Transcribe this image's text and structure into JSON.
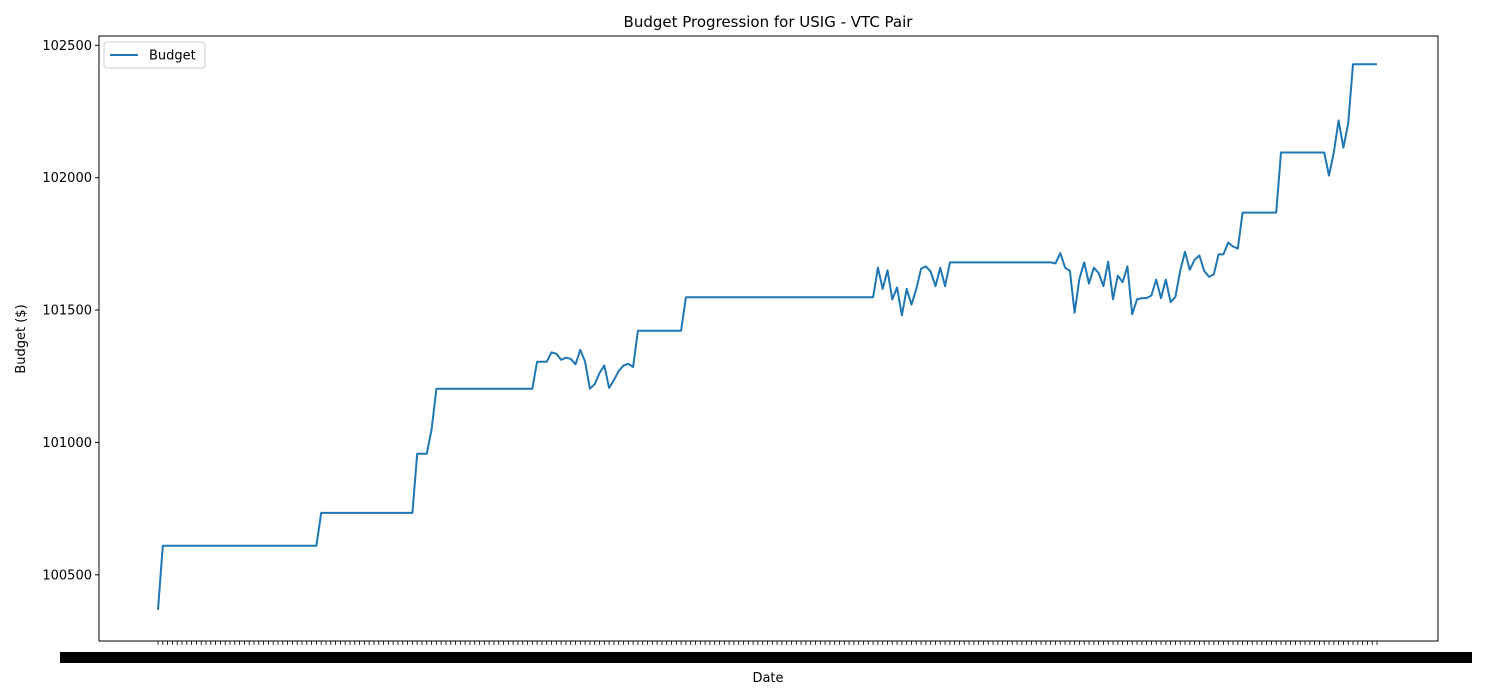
{
  "chart_data": {
    "type": "line",
    "title": "Budget Progression for USIG - VTC Pair",
    "xlabel": "Date",
    "ylabel": "Budget ($)",
    "yticks": [
      100500,
      101000,
      101500,
      102000,
      102500
    ],
    "ylim": [
      100250,
      102535
    ],
    "grid": false,
    "legend_position": "top-left",
    "series": [
      {
        "name": "Budget",
        "color": "#1f77b4",
        "values": [
          100368,
          100610,
          100610,
          100610,
          100610,
          100610,
          100610,
          100610,
          100610,
          100610,
          100610,
          100610,
          100610,
          100610,
          100610,
          100610,
          100610,
          100610,
          100610,
          100610,
          100610,
          100610,
          100610,
          100610,
          100610,
          100610,
          100610,
          100610,
          100610,
          100610,
          100610,
          100610,
          100610,
          100610,
          100734,
          100734,
          100734,
          100734,
          100734,
          100734,
          100734,
          100734,
          100734,
          100734,
          100734,
          100734,
          100734,
          100734,
          100734,
          100734,
          100734,
          100734,
          100734,
          100734,
          100957,
          100957,
          100957,
          101050,
          101203,
          101203,
          101203,
          101203,
          101203,
          101203,
          101203,
          101203,
          101203,
          101203,
          101203,
          101203,
          101203,
          101203,
          101203,
          101203,
          101203,
          101203,
          101203,
          101203,
          101203,
          101305,
          101305,
          101305,
          101340,
          101335,
          101312,
          101320,
          101316,
          101295,
          101350,
          101305,
          101203,
          101220,
          101262,
          101290,
          101206,
          101235,
          101270,
          101290,
          101297,
          101285,
          101422,
          101422,
          101422,
          101422,
          101422,
          101422,
          101422,
          101422,
          101422,
          101422,
          101548,
          101548,
          101548,
          101548,
          101548,
          101548,
          101548,
          101548,
          101548,
          101548,
          101548,
          101548,
          101548,
          101548,
          101548,
          101548,
          101548,
          101548,
          101548,
          101548,
          101548,
          101548,
          101548,
          101548,
          101548,
          101548,
          101548,
          101548,
          101548,
          101548,
          101548,
          101548,
          101548,
          101548,
          101548,
          101548,
          101548,
          101548,
          101548,
          101548,
          101660,
          101580,
          101650,
          101540,
          101585,
          101480,
          101580,
          101520,
          101580,
          101656,
          101665,
          101645,
          101590,
          101660,
          101590,
          101680,
          101680,
          101680,
          101680,
          101680,
          101680,
          101680,
          101680,
          101680,
          101680,
          101680,
          101680,
          101680,
          101680,
          101680,
          101680,
          101680,
          101680,
          101680,
          101680,
          101680,
          101680,
          101676,
          101715,
          101660,
          101648,
          101490,
          101618,
          101680,
          101600,
          101660,
          101640,
          101590,
          101683,
          101540,
          101630,
          101605,
          101665,
          101484,
          101540,
          101545,
          101545,
          101555,
          101615,
          101545,
          101615,
          101530,
          101550,
          101648,
          101720,
          101652,
          101690,
          101706,
          101648,
          101625,
          101635,
          101710,
          101710,
          101755,
          101740,
          101732,
          101868,
          101868,
          101868,
          101868,
          101868,
          101868,
          101868,
          101868,
          102095,
          102095,
          102095,
          102095,
          102095,
          102095,
          102095,
          102095,
          102095,
          102095,
          102008,
          102095,
          102216,
          102113,
          102205,
          102428,
          102428,
          102428,
          102428,
          102428,
          102428
        ]
      }
    ]
  }
}
